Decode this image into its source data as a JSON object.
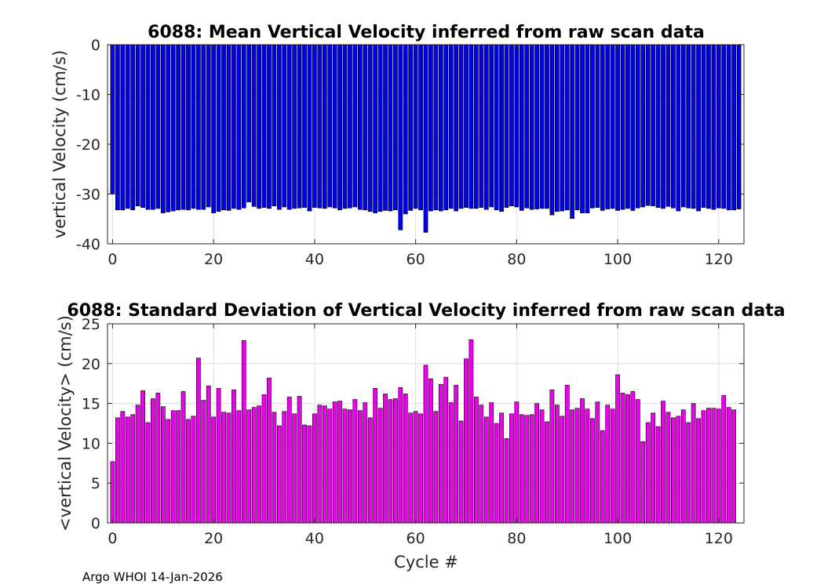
{
  "footer": "Argo WHOI 14-Jan-2026",
  "colors": {
    "mean": "#0000ee",
    "std": "#ee00ee",
    "edge": "#000000",
    "grid": "#dedede",
    "axis": "#262626"
  },
  "chart_data": [
    {
      "type": "bar",
      "title": "6088: Mean Vertical Velocity inferred from raw scan data",
      "xlabel": "",
      "ylabel": "vertical Velocity (cm/s)",
      "xlim": [
        -1,
        125
      ],
      "ylim": [
        -40,
        0
      ],
      "xticks": [
        0,
        20,
        40,
        60,
        80,
        100,
        120
      ],
      "yticks": [
        0,
        -10,
        -20,
        -30,
        -40
      ],
      "grid": true,
      "x": [
        0,
        1,
        2,
        3,
        4,
        5,
        6,
        7,
        8,
        9,
        10,
        11,
        12,
        13,
        14,
        15,
        16,
        17,
        18,
        19,
        20,
        21,
        22,
        23,
        24,
        25,
        26,
        27,
        28,
        29,
        30,
        31,
        32,
        33,
        34,
        35,
        36,
        37,
        38,
        39,
        40,
        41,
        42,
        43,
        44,
        45,
        46,
        47,
        48,
        49,
        50,
        51,
        52,
        53,
        54,
        55,
        56,
        57,
        58,
        59,
        60,
        61,
        62,
        63,
        64,
        65,
        66,
        67,
        68,
        69,
        70,
        71,
        72,
        73,
        74,
        75,
        76,
        77,
        78,
        79,
        80,
        81,
        82,
        83,
        84,
        85,
        86,
        87,
        88,
        89,
        90,
        91,
        92,
        93,
        94,
        95,
        96,
        97,
        98,
        99,
        100,
        101,
        102,
        103,
        104,
        105,
        106,
        107,
        108,
        109,
        110,
        111,
        112,
        113,
        114,
        115,
        116,
        117,
        118,
        119,
        120,
        121,
        122,
        123,
        124
      ],
      "values": [
        -30.0,
        -33.2,
        -33.2,
        -32.9,
        -33.2,
        -32.4,
        -32.7,
        -33.1,
        -33.1,
        -32.9,
        -33.8,
        -33.6,
        -33.4,
        -33.2,
        -33.1,
        -33.2,
        -32.9,
        -33.1,
        -33.1,
        -32.6,
        -33.8,
        -33.5,
        -33.2,
        -33.3,
        -32.9,
        -33.1,
        -32.8,
        -31.6,
        -32.5,
        -32.9,
        -32.7,
        -32.9,
        -32.4,
        -33.1,
        -32.6,
        -33.1,
        -32.9,
        -32.8,
        -32.7,
        -33.4,
        -32.7,
        -32.8,
        -32.9,
        -32.6,
        -32.8,
        -33.2,
        -32.9,
        -32.8,
        -32.6,
        -33.1,
        -33.2,
        -33.5,
        -33.8,
        -33.5,
        -33.3,
        -33.4,
        -33.2,
        -37.2,
        -34.0,
        -33.3,
        -32.9,
        -33.2,
        -37.7,
        -33.4,
        -33.2,
        -33.4,
        -33.2,
        -32.9,
        -33.4,
        -32.9,
        -32.7,
        -32.9,
        -32.9,
        -32.7,
        -33.1,
        -32.6,
        -33.2,
        -33.5,
        -32.7,
        -32.4,
        -32.6,
        -33.3,
        -32.8,
        -33.1,
        -33.0,
        -32.9,
        -32.9,
        -34.2,
        -33.5,
        -33.4,
        -33.2,
        -34.9,
        -33.2,
        -33.8,
        -33.8,
        -32.8,
        -32.7,
        -33.3,
        -33.0,
        -32.9,
        -33.3,
        -33.1,
        -32.9,
        -33.3,
        -32.8,
        -32.6,
        -32.3,
        -32.4,
        -32.7,
        -32.9,
        -32.5,
        -32.8,
        -33.4,
        -32.6,
        -32.8,
        -32.9,
        -33.4,
        -32.7,
        -32.9,
        -33.1,
        -32.8,
        -32.9,
        -33.2,
        -33.2,
        -33.0
      ]
    },
    {
      "type": "bar",
      "title": "6088: Standard Deviation of Vertical Velocity inferred from raw scan data",
      "xlabel": "Cycle #",
      "ylabel": "<vertical Velocity> (cm/s)",
      "xlim": [
        -1,
        125
      ],
      "ylim": [
        0,
        25
      ],
      "xticks": [
        0,
        20,
        40,
        60,
        80,
        100,
        120
      ],
      "yticks": [
        0,
        5,
        10,
        15,
        20,
        25
      ],
      "grid": true,
      "x": [
        0,
        1,
        2,
        3,
        4,
        5,
        6,
        7,
        8,
        9,
        10,
        11,
        12,
        13,
        14,
        15,
        16,
        17,
        18,
        19,
        20,
        21,
        22,
        23,
        24,
        25,
        26,
        27,
        28,
        29,
        30,
        31,
        32,
        33,
        34,
        35,
        36,
        37,
        38,
        39,
        40,
        41,
        42,
        43,
        44,
        45,
        46,
        47,
        48,
        49,
        50,
        51,
        52,
        53,
        54,
        55,
        56,
        57,
        58,
        59,
        60,
        61,
        62,
        63,
        64,
        65,
        66,
        67,
        68,
        69,
        70,
        71,
        72,
        73,
        74,
        75,
        76,
        77,
        78,
        79,
        80,
        81,
        82,
        83,
        84,
        85,
        86,
        87,
        88,
        89,
        90,
        91,
        92,
        93,
        94,
        95,
        96,
        97,
        98,
        99,
        100,
        101,
        102,
        103,
        104,
        105,
        106,
        107,
        108,
        109,
        110,
        111,
        112,
        113,
        114,
        115,
        116,
        117,
        118,
        119,
        120,
        121,
        122,
        123,
        124
      ],
      "values": [
        7.7,
        13.2,
        14.0,
        13.3,
        13.6,
        14.8,
        16.6,
        12.6,
        15.6,
        16.3,
        14.6,
        13.0,
        14.1,
        14.1,
        16.5,
        13.0,
        13.4,
        20.7,
        15.4,
        17.2,
        13.3,
        16.9,
        13.9,
        13.8,
        16.7,
        14.1,
        22.9,
        14.2,
        14.5,
        14.7,
        16.1,
        18.2,
        13.9,
        12.2,
        14.0,
        15.8,
        13.7,
        15.9,
        12.3,
        12.2,
        13.7,
        14.8,
        14.7,
        14.3,
        15.2,
        15.3,
        14.3,
        14.2,
        15.5,
        14.1,
        15.1,
        13.2,
        16.9,
        14.4,
        16.2,
        15.5,
        15.6,
        17.0,
        16.2,
        13.8,
        14.0,
        13.7,
        19.8,
        18.1,
        14.0,
        17.4,
        18.3,
        15.1,
        17.3,
        12.8,
        20.6,
        23.0,
        15.8,
        14.8,
        13.3,
        15.1,
        12.5,
        13.8,
        10.6,
        13.7,
        15.2,
        13.6,
        13.5,
        13.6,
        15.0,
        14.2,
        12.7,
        16.7,
        14.8,
        13.4,
        17.3,
        14.2,
        14.4,
        15.6,
        14.3,
        13.1,
        15.2,
        11.6,
        14.8,
        14.3,
        18.6,
        16.3,
        16.1,
        16.5,
        15.5,
        10.2,
        12.6,
        13.8,
        12.1,
        15.3,
        13.9,
        13.2,
        13.4,
        14.2,
        12.6,
        15.0,
        13.1,
        14.1,
        14.4,
        14.4,
        14.3,
        16.0,
        14.5,
        14.2,
        0
      ]
    }
  ]
}
